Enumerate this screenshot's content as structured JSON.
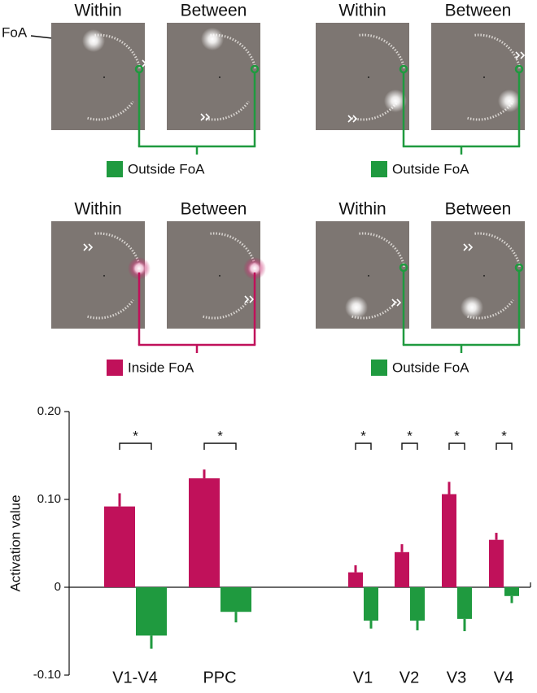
{
  "foa_label": "FoA",
  "panels": [
    {
      "titles": [
        "Within",
        "Between"
      ],
      "legend": "Outside FoA",
      "color": "#1f9a3f"
    },
    {
      "titles": [
        "Within",
        "Between"
      ],
      "legend": "Outside FoA",
      "color": "#1f9a3f"
    },
    {
      "titles": [
        "Within",
        "Between"
      ],
      "legend": "Inside FoA",
      "color": "#c0115a"
    },
    {
      "titles": [
        "Within",
        "Between"
      ],
      "legend": "Outside FoA",
      "color": "#1f9a3f"
    }
  ],
  "chart_data": {
    "type": "bar",
    "ylabel": "Activation value",
    "categories": [
      "V1-V4",
      "PPC",
      "V1",
      "V2",
      "V3",
      "V4"
    ],
    "series": [
      {
        "color": "#c0115a",
        "values": [
          0.092,
          0.124,
          0.017,
          0.04,
          0.106,
          0.054
        ],
        "errors": [
          0.015,
          0.01,
          0.008,
          0.009,
          0.014,
          0.008
        ]
      },
      {
        "color": "#1f9a3f",
        "values": [
          -0.055,
          -0.028,
          -0.038,
          -0.038,
          -0.036,
          -0.01
        ],
        "errors": [
          0.015,
          0.012,
          0.009,
          0.011,
          0.014,
          0.008
        ]
      }
    ],
    "significance": [
      "*",
      "*",
      "*",
      "*",
      "*",
      "*"
    ],
    "ylim": [
      -0.1,
      0.2
    ],
    "yticks": [
      {
        "value": -0.1,
        "label": "-0.10"
      },
      0,
      {
        "value": 0.1,
        "label": "0.10"
      },
      {
        "value": 0.2,
        "label": "0.20"
      }
    ]
  }
}
